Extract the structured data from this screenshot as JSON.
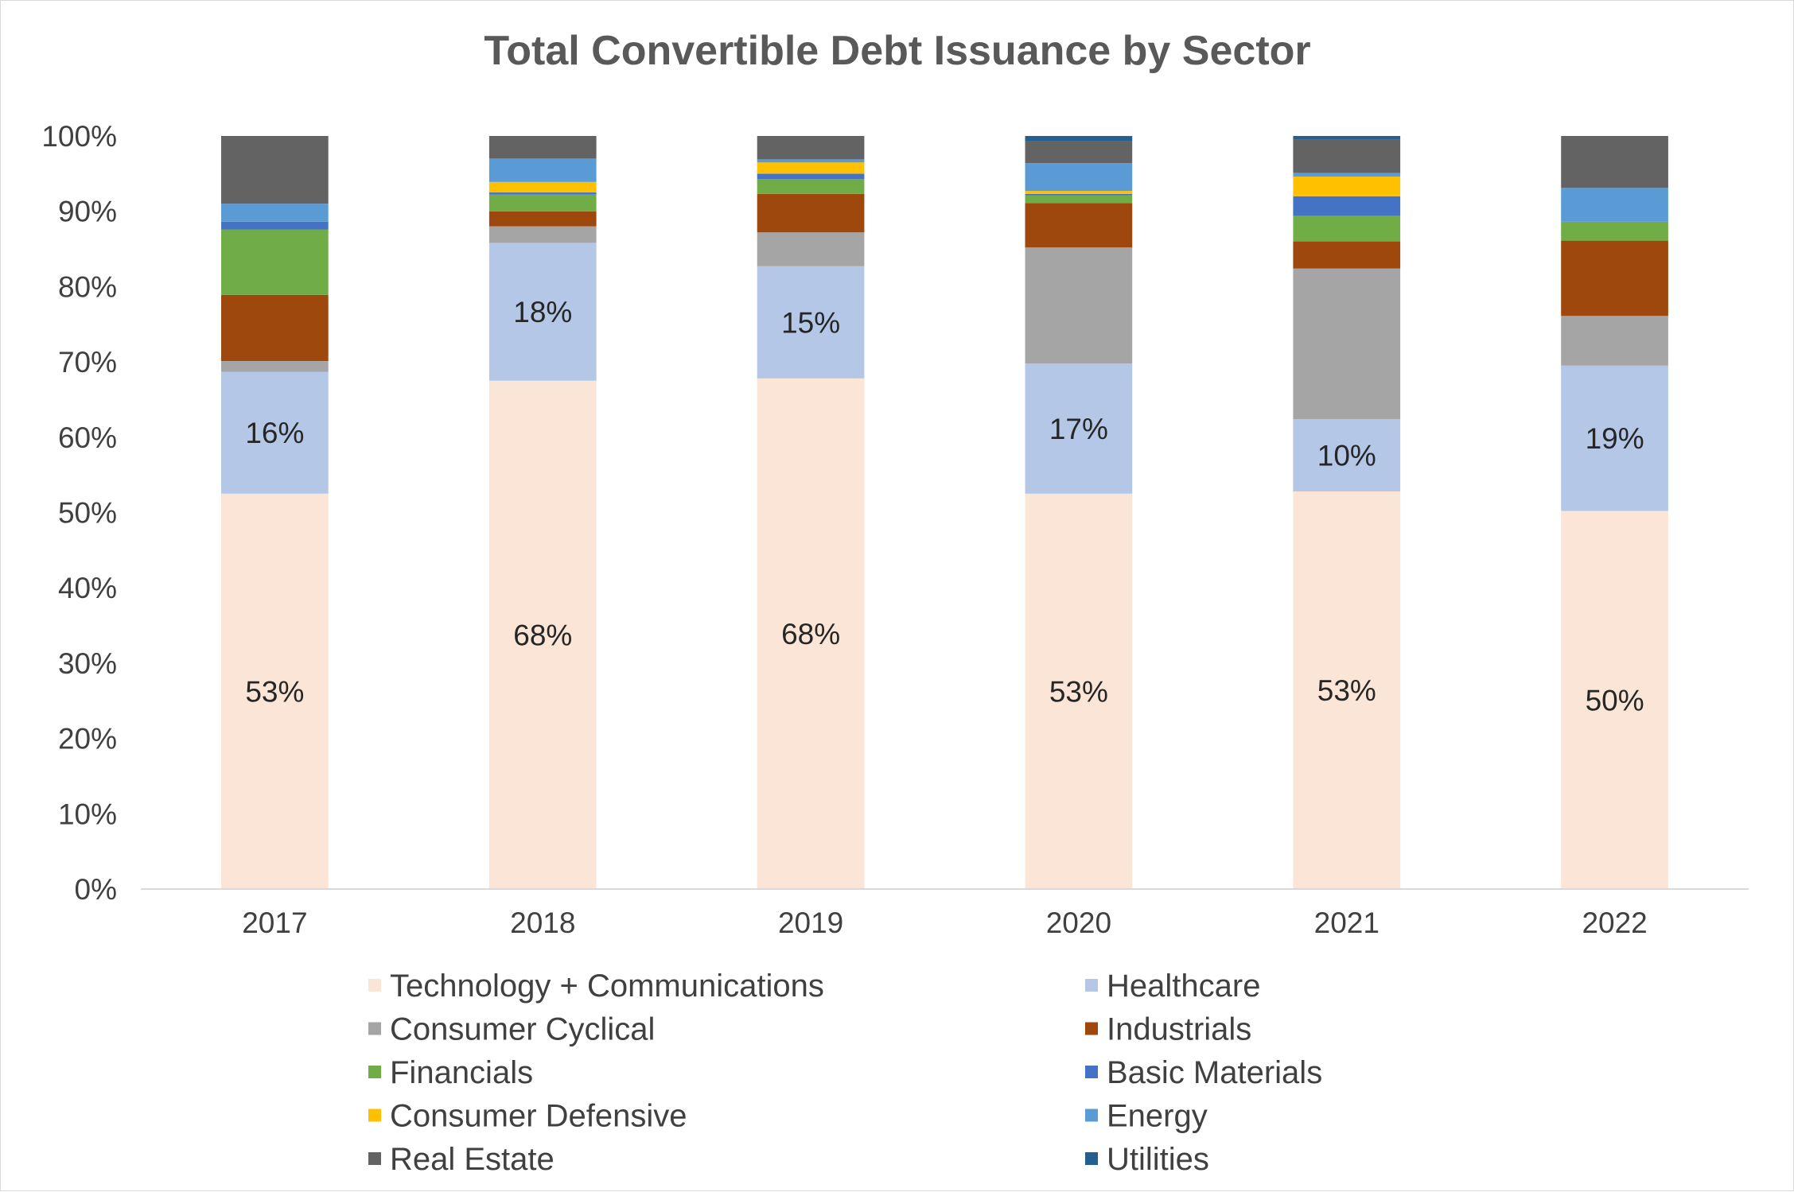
{
  "chart_data": {
    "type": "bar",
    "stacked": true,
    "title": "Total Convertible Debt Issuance by Sector",
    "xlabel": "",
    "ylabel": "",
    "ylim": [
      0,
      100
    ],
    "y_ticks": [
      "0%",
      "10%",
      "20%",
      "30%",
      "40%",
      "50%",
      "60%",
      "70%",
      "80%",
      "90%",
      "100%"
    ],
    "grid": false,
    "legend_position": "bottom",
    "categories": [
      "2017",
      "2018",
      "2019",
      "2020",
      "2021",
      "2022"
    ],
    "series": [
      {
        "name": "Technology + Communications",
        "color": "#FBE5D6",
        "values": [
          52.5,
          67.5,
          67.8,
          52.5,
          52.8,
          50.2
        ],
        "labels": [
          "53%",
          "68%",
          "68%",
          "53%",
          "53%",
          "50%"
        ]
      },
      {
        "name": "Healthcare",
        "color": "#B4C7E7",
        "values": [
          16.2,
          18.3,
          14.9,
          17.3,
          9.6,
          19.3
        ],
        "labels": [
          "16%",
          "18%",
          "15%",
          "17%",
          "10%",
          "19%"
        ]
      },
      {
        "name": "Consumer Cyclical",
        "color": "#A5A5A5",
        "values": [
          1.4,
          2.2,
          4.5,
          15.4,
          20.0,
          6.6
        ],
        "labels": [
          "",
          "",
          "",
          "",
          "",
          ""
        ]
      },
      {
        "name": "Industrials",
        "color": "#9E480E",
        "values": [
          8.8,
          2.0,
          5.1,
          5.9,
          3.6,
          10.0
        ],
        "labels": [
          "",
          "",
          "",
          "",
          "",
          ""
        ]
      },
      {
        "name": "Financials",
        "color": "#70AD47",
        "values": [
          8.7,
          2.2,
          2.0,
          1.0,
          3.4,
          2.5
        ],
        "labels": [
          "",
          "",
          "",
          "",
          "",
          ""
        ]
      },
      {
        "name": "Basic Materials",
        "color": "#4472C4",
        "values": [
          1.0,
          0.3,
          0.7,
          0.2,
          2.6,
          0.0
        ],
        "labels": [
          "",
          "",
          "",
          "",
          "",
          ""
        ]
      },
      {
        "name": "Consumer Defensive",
        "color": "#FFC000",
        "values": [
          0.0,
          1.4,
          1.5,
          0.4,
          2.6,
          0.0
        ],
        "labels": [
          "",
          "",
          "",
          "",
          "",
          ""
        ]
      },
      {
        "name": "Energy",
        "color": "#5B9BD5",
        "values": [
          2.4,
          3.1,
          0.4,
          3.7,
          0.5,
          4.5
        ],
        "labels": [
          "",
          "",
          "",
          "",
          "",
          ""
        ]
      },
      {
        "name": "Real Estate",
        "color": "#636363",
        "values": [
          9.0,
          3.0,
          3.1,
          2.9,
          4.4,
          6.9
        ],
        "labels": [
          "",
          "",
          "",
          "",
          "",
          ""
        ]
      },
      {
        "name": "Utilities",
        "color": "#255E91",
        "values": [
          0.0,
          0.0,
          0.0,
          0.7,
          0.5,
          0.0
        ],
        "labels": [
          "",
          "",
          "",
          "",
          "",
          ""
        ]
      }
    ]
  }
}
